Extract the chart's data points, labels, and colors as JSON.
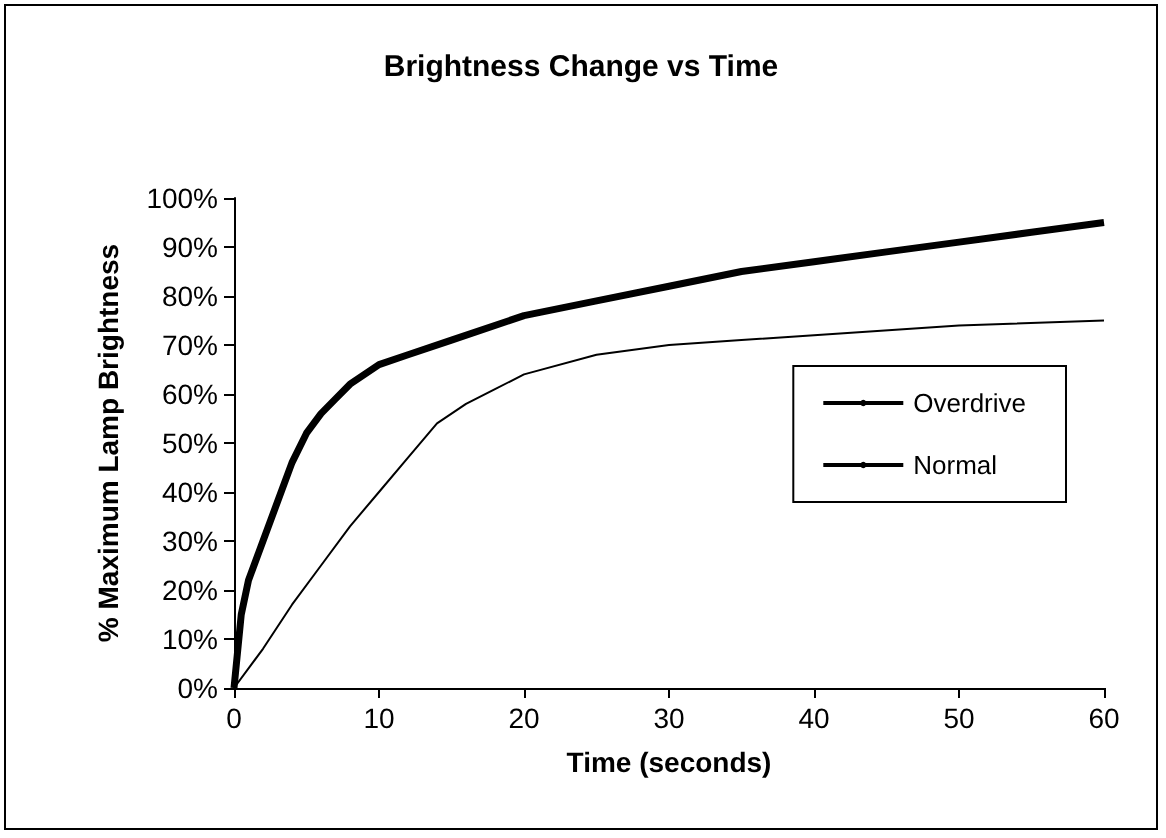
{
  "chart_data": {
    "type": "line",
    "title": "Brightness Change vs Time",
    "xlabel": "Time (seconds)",
    "ylabel": "% Maximum Lamp Brightness",
    "series": [
      {
        "name": "Overdrive",
        "color": "#000000",
        "x": [
          0,
          0.5,
          1,
          2,
          3,
          4,
          5,
          6,
          7,
          8,
          9,
          10,
          12,
          15,
          20,
          25,
          30,
          35,
          40,
          45,
          50,
          55,
          60
        ],
        "values": [
          0,
          15,
          22,
          30,
          38,
          46,
          52,
          56,
          59,
          62,
          64,
          66,
          68,
          71,
          76,
          79,
          82,
          85,
          87,
          89,
          91,
          93,
          95
        ]
      },
      {
        "name": "Normal",
        "color": "#000000",
        "x": [
          0,
          2,
          4,
          6,
          8,
          10,
          12,
          14,
          16,
          18,
          20,
          25,
          30,
          35,
          40,
          50,
          60
        ],
        "values": [
          0,
          8,
          17,
          25,
          33,
          40,
          47,
          54,
          58,
          61,
          64,
          68,
          70,
          71,
          72,
          74,
          75
        ]
      }
    ],
    "xlim": [
      0,
      60
    ],
    "xticks": [
      0,
      10,
      20,
      30,
      40,
      50,
      60
    ],
    "ylim": [
      0,
      100
    ],
    "yticks": [
      {
        "value": 0,
        "label": "0%"
      },
      {
        "value": 10,
        "label": "10%"
      },
      {
        "value": 20,
        "label": "20%"
      },
      {
        "value": 30,
        "label": "30%"
      },
      {
        "value": 40,
        "label": "40%"
      },
      {
        "value": 50,
        "label": "50%"
      },
      {
        "value": 60,
        "label": "60%"
      },
      {
        "value": 70,
        "label": "70%"
      },
      {
        "value": 80,
        "label": "80%"
      },
      {
        "value": 90,
        "label": "90%"
      },
      {
        "value": 100,
        "label": "100%"
      }
    ],
    "grid": false,
    "legend": "right",
    "marker": "none"
  }
}
